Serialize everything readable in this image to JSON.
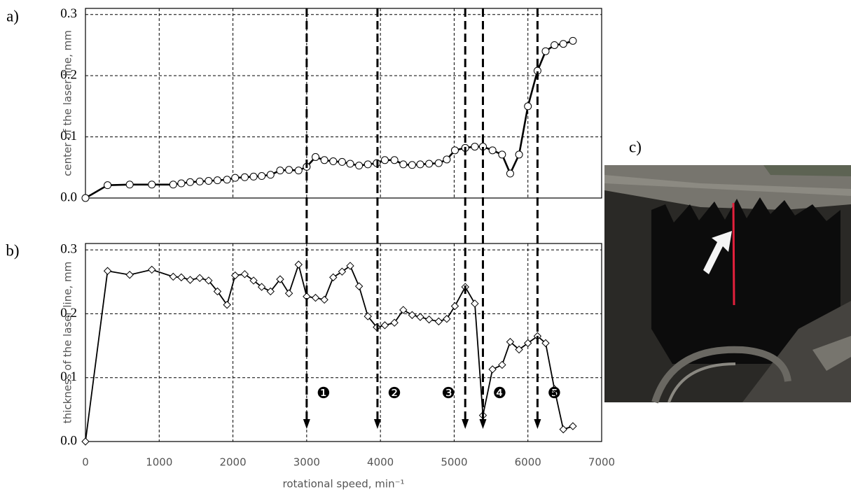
{
  "chart_data": [
    {
      "type": "line",
      "panel_label": "a)",
      "y_label": "center of the laser line, mm",
      "x": [
        0,
        300,
        600,
        900,
        1190,
        1300,
        1420,
        1550,
        1670,
        1790,
        1920,
        2030,
        2160,
        2280,
        2390,
        2510,
        2640,
        2760,
        2890,
        3000,
        3120,
        3240,
        3360,
        3480,
        3590,
        3710,
        3830,
        3950,
        4060,
        4190,
        4310,
        4430,
        4540,
        4660,
        4790,
        4900,
        5010,
        5150,
        5280,
        5390,
        5520,
        5650,
        5760,
        5880,
        6000,
        6130,
        6240,
        6360,
        6480,
        6610
      ],
      "series": [
        {
          "color": "#000000",
          "marker": "circle",
          "values": [
            0,
            0.021,
            0.022,
            0.022,
            0.022,
            0.024,
            0.026,
            0.027,
            0.028,
            0.029,
            0.03,
            0.033,
            0.034,
            0.035,
            0.036,
            0.038,
            0.045,
            0.046,
            0.045,
            0.051,
            0.067,
            0.062,
            0.06,
            0.059,
            0.056,
            0.053,
            0.055,
            0.057,
            0.062,
            0.062,
            0.055,
            0.054,
            0.055,
            0.056,
            0.057,
            0.063,
            0.078,
            0.082,
            0.084,
            0.084,
            0.078,
            0.071,
            0.04,
            0.071,
            0.15,
            0.208,
            0.24,
            0.25,
            0.252,
            0.257
          ]
        }
      ],
      "xlim": [
        0,
        7000
      ],
      "xticks": [
        0,
        1000,
        2000,
        3000,
        4000,
        5000,
        6000,
        7000
      ],
      "xtick_labels": false,
      "ylim": [
        0,
        0.31
      ],
      "yticks": [
        {
          "value": 0,
          "label": "0.0"
        },
        0.1,
        0.2,
        0.3
      ],
      "grid": true
    },
    {
      "type": "line",
      "panel_label": "b)",
      "y_label": "thickness of the laser line, mm",
      "x_label": "rotational speed, min⁻¹",
      "x": [
        0,
        300,
        600,
        900,
        1190,
        1300,
        1420,
        1550,
        1670,
        1790,
        1920,
        2030,
        2160,
        2280,
        2390,
        2510,
        2640,
        2760,
        2890,
        3000,
        3120,
        3240,
        3360,
        3480,
        3590,
        3710,
        3830,
        3950,
        4060,
        4190,
        4310,
        4430,
        4540,
        4660,
        4790,
        4900,
        5010,
        5150,
        5280,
        5390,
        5520,
        5650,
        5760,
        5880,
        6000,
        6130,
        6240,
        6360,
        6480,
        6610
      ],
      "series": [
        {
          "color": "#000000",
          "marker": "diamond",
          "values": [
            0,
            0.267,
            0.261,
            0.269,
            0.258,
            0.257,
            0.253,
            0.256,
            0.252,
            0.235,
            0.214,
            0.26,
            0.262,
            0.252,
            0.242,
            0.235,
            0.254,
            0.232,
            0.277,
            0.227,
            0.225,
            0.222,
            0.257,
            0.266,
            0.275,
            0.243,
            0.196,
            0.179,
            0.182,
            0.186,
            0.206,
            0.198,
            0.195,
            0.191,
            0.188,
            0.192,
            0.212,
            0.242,
            0.216,
            0.041,
            0.113,
            0.12,
            0.156,
            0.144,
            0.154,
            0.165,
            0.154,
            0.082,
            0.019,
            0.024
          ]
        }
      ],
      "xlim": [
        0,
        7000
      ],
      "xticks": [
        0,
        1000,
        2000,
        3000,
        4000,
        5000,
        6000,
        7000
      ],
      "xtick_labels": true,
      "ylim": [
        0,
        0.31
      ],
      "yticks": [
        {
          "value": 0,
          "label": "0.0"
        },
        0.1,
        0.2,
        0.3
      ],
      "grid": true,
      "annotations": [
        {
          "x": 3000,
          "label": "❶"
        },
        {
          "x": 3960,
          "label": "❷"
        },
        {
          "x": 5150,
          "label": "❸"
        },
        {
          "x": 5390,
          "label": "❹"
        },
        {
          "x": 6130,
          "label": "❺"
        }
      ]
    }
  ],
  "photo": {
    "label": "c)"
  }
}
